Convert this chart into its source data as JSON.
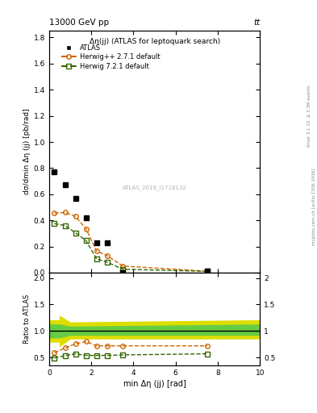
{
  "title_top": "13000 GeV pp",
  "title_top_right": "tt",
  "plot_title": "Δη(jj) (ATLAS for leptoquark search)",
  "watermark": "ATLAS_2019_I1718132",
  "rivet_text": "Rivet 3.1.10, ≥ 3.3M events",
  "arxiv_text": "mcplots.cern.ch [arXiv:1306.3436]",
  "xlabel": "min Δη (jj) [rad]",
  "ylabel": "dσ/dmin Δη (jj) [pb/rad]",
  "ylabel_ratio": "Ratio to ATLAS",
  "xlim": [
    0,
    10
  ],
  "ylim_main": [
    0,
    1.85
  ],
  "ylim_ratio": [
    0.35,
    2.1
  ],
  "atlas_x": [
    0.25,
    0.75,
    1.25,
    1.75,
    2.25,
    2.75,
    3.5,
    7.5
  ],
  "atlas_y": [
    0.77,
    0.675,
    0.565,
    0.42,
    0.23,
    0.225,
    0.0,
    0.01
  ],
  "herwig_pp_x": [
    0.25,
    0.75,
    1.25,
    1.75,
    2.25,
    2.75,
    3.5,
    7.5
  ],
  "herwig_pp_y": [
    0.455,
    0.46,
    0.43,
    0.335,
    0.165,
    0.13,
    0.05,
    0.01
  ],
  "herwig7_x": [
    0.25,
    0.75,
    1.25,
    1.75,
    2.25,
    2.75,
    3.5,
    7.5
  ],
  "herwig7_y": [
    0.375,
    0.36,
    0.305,
    0.245,
    0.105,
    0.08,
    0.025,
    0.01
  ],
  "herwig_pp_ratio": [
    0.59,
    0.68,
    0.76,
    0.8,
    0.72,
    0.72,
    0.72,
    0.72
  ],
  "herwig7_ratio": [
    0.49,
    0.535,
    0.57,
    0.54,
    0.54,
    0.54,
    0.55,
    0.57
  ],
  "herwig_pp_color": "#cc6600",
  "herwig7_color": "#336600",
  "atlas_color": "#000000",
  "green_band_color": "#66cc44",
  "yellow_band_color": "#dddd00",
  "legend_atlas": "ATLAS",
  "legend_pp": "Herwig++ 2.7.1 default",
  "legend_h7": "Herwig 7.2.1 default",
  "yticks_main": [
    0.0,
    0.2,
    0.4,
    0.6,
    0.8,
    1.0,
    1.2,
    1.4,
    1.6,
    1.8
  ],
  "yticks_ratio": [
    0.5,
    1.0,
    1.5,
    2.0
  ],
  "xticks": [
    0,
    2,
    4,
    6,
    8,
    10
  ]
}
